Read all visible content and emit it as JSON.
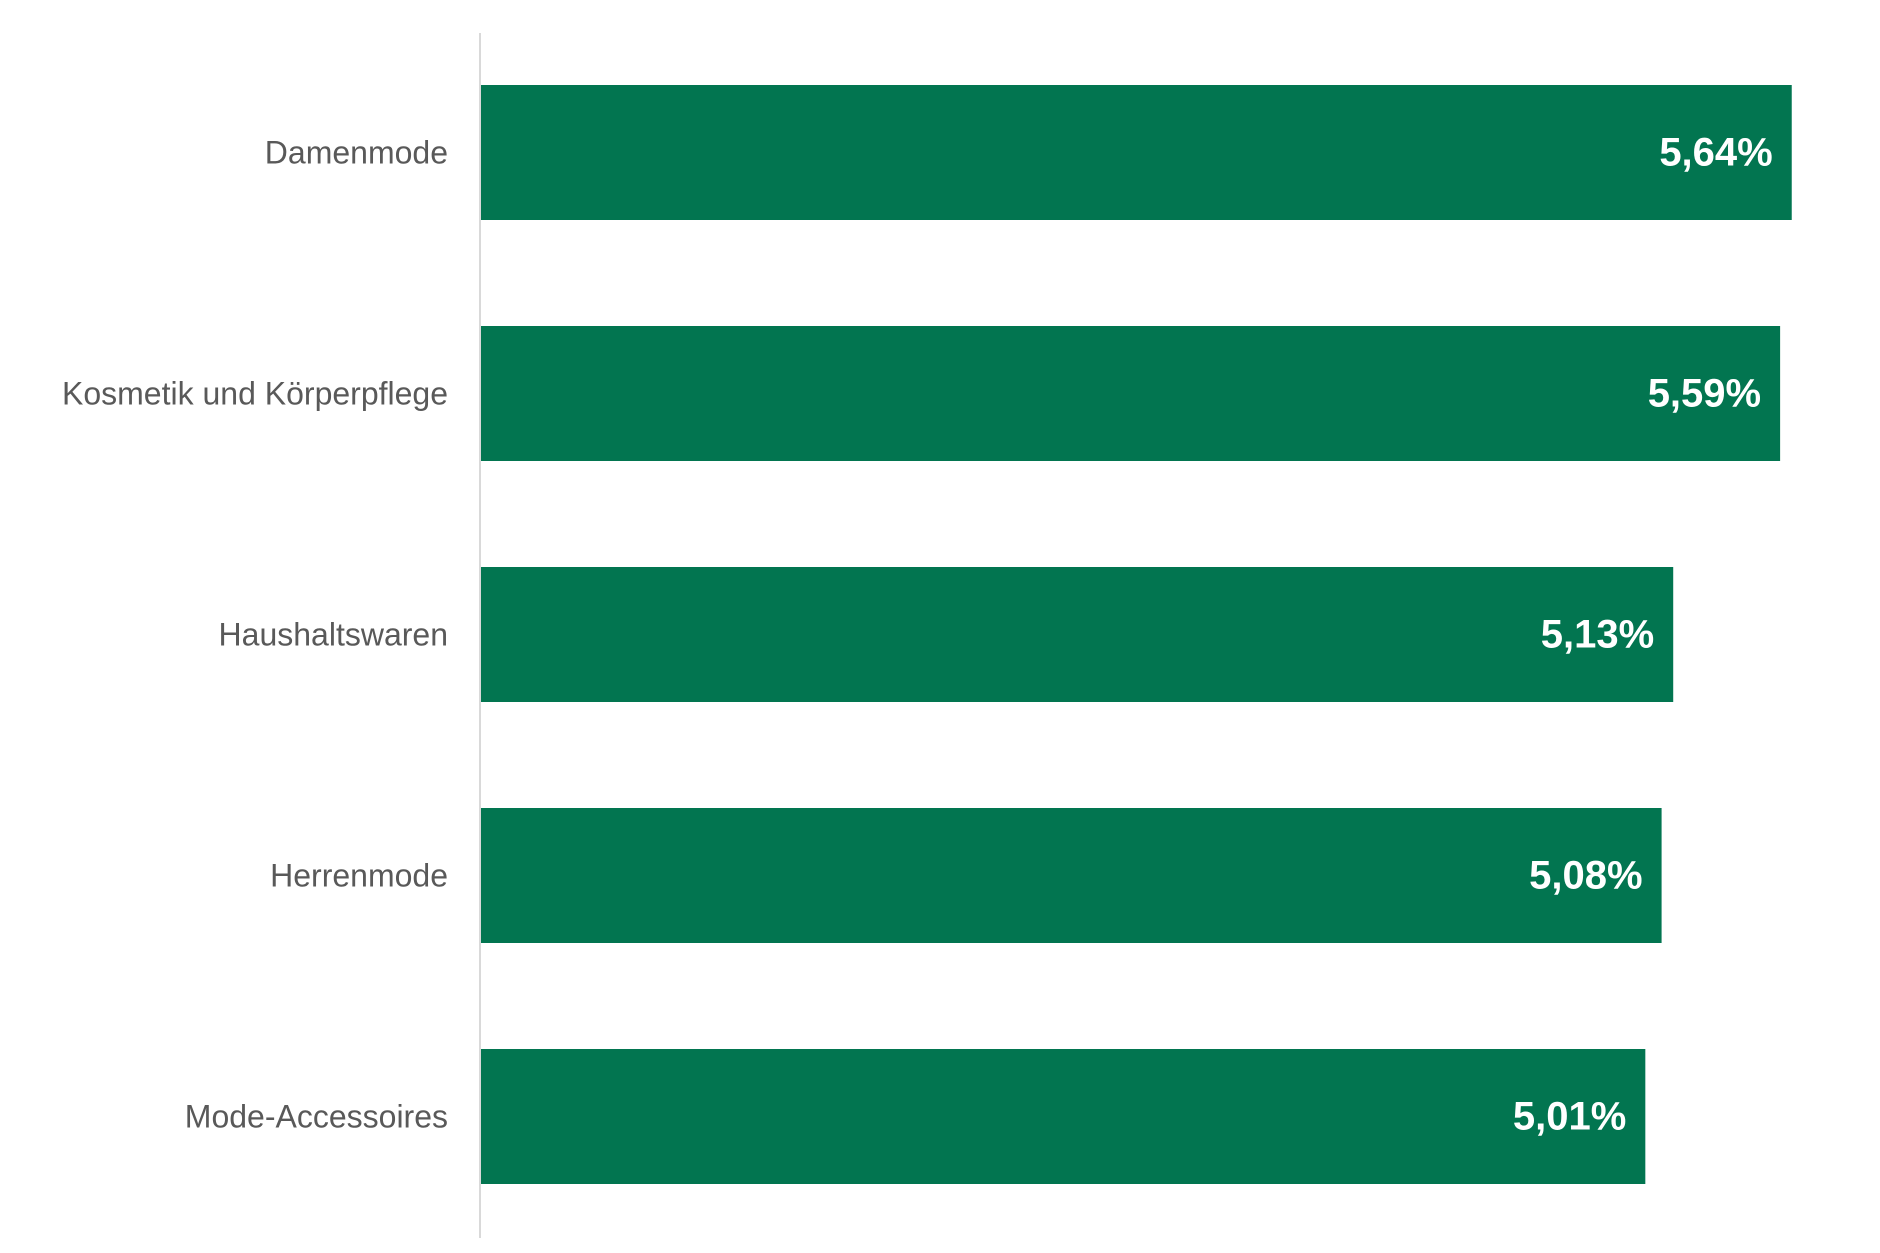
{
  "chart_data": {
    "type": "bar",
    "orientation": "horizontal",
    "categories": [
      "Damenmode",
      "Kosmetik und Körperpflege",
      "Haushaltswaren",
      "Herrenmode",
      "Mode-Accessoires"
    ],
    "values": [
      5.64,
      5.59,
      5.13,
      5.08,
      5.01
    ],
    "value_labels": [
      "5,64%",
      "5,59%",
      "5,13%",
      "5,08%",
      "5,01%"
    ],
    "unit": "%",
    "title": "",
    "xlabel": "",
    "ylabel": "",
    "xlim": [
      0,
      5.9
    ],
    "grid": false,
    "legend": "none",
    "colors": {
      "bar": "#027550",
      "axis": "#d9d9d9",
      "category_text": "#595959",
      "value_text": "#ffffff"
    }
  }
}
